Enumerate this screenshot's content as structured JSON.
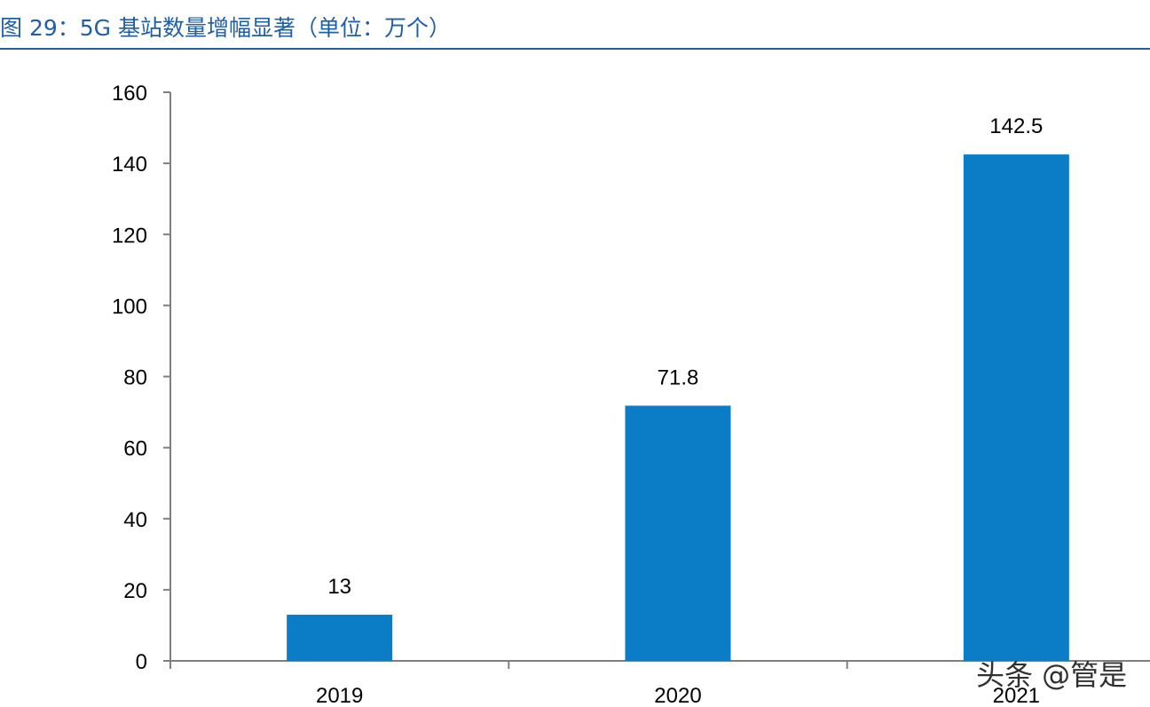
{
  "page": {
    "title": "图 29：5G 基站数量增幅显著（单位：万个）",
    "watermark": "头条 @管是"
  },
  "colors": {
    "title": "#1f5fa8",
    "bar": "#0b7dc6",
    "axis": "#7f7f7f"
  },
  "chart_data": {
    "type": "bar",
    "title": "",
    "xlabel": "",
    "ylabel": "",
    "categories": [
      "2019",
      "2020",
      "2021"
    ],
    "values": [
      13,
      71.8,
      142.5
    ],
    "data_labels": [
      "13",
      "71.8",
      "142.5"
    ],
    "ylim": [
      0,
      160
    ],
    "yticks": [
      0,
      20,
      40,
      60,
      80,
      100,
      120,
      140,
      160
    ],
    "grid": false,
    "legend": "none"
  }
}
